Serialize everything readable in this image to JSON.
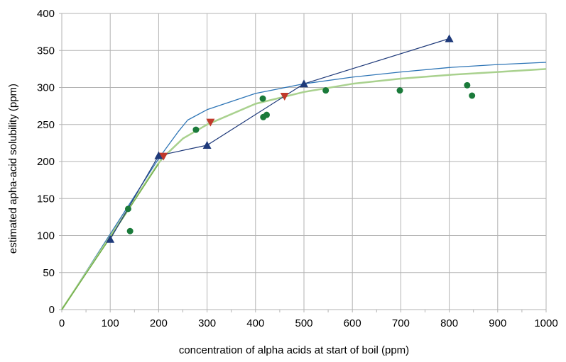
{
  "chart_data": {
    "type": "scatter",
    "title": "",
    "xlabel": "concentration of alpha acids at start of boil (ppm)",
    "ylabel": "estimated apha-acid solubility (ppm)",
    "xlim": [
      0,
      1000
    ],
    "ylim": [
      0,
      400
    ],
    "x_ticks": [
      0,
      100,
      200,
      300,
      400,
      500,
      600,
      700,
      800,
      900,
      1000
    ],
    "y_ticks": [
      0,
      50,
      100,
      150,
      200,
      250,
      300,
      350,
      400
    ],
    "grid": true,
    "legend": "none",
    "series": [
      {
        "kind": "line-marker",
        "marker": "triangle-up",
        "color": "#1f3a7a",
        "points": [
          [
            100,
            95
          ],
          [
            200,
            208
          ],
          [
            300,
            222
          ],
          [
            500,
            305
          ],
          [
            800,
            366
          ]
        ]
      },
      {
        "kind": "marker",
        "marker": "triangle-down",
        "color": "#c0392b",
        "points": [
          [
            210,
            207
          ],
          [
            307,
            253
          ],
          [
            460,
            288
          ]
        ]
      },
      {
        "kind": "marker",
        "marker": "circle",
        "color": "#1a7a3a",
        "points": [
          [
            137,
            136
          ],
          [
            141,
            106
          ],
          [
            277,
            243
          ],
          [
            415,
            285
          ],
          [
            416,
            260
          ],
          [
            423,
            263
          ],
          [
            545,
            296
          ],
          [
            698,
            296
          ],
          [
            837,
            303
          ],
          [
            847,
            289
          ]
        ]
      },
      {
        "kind": "curve",
        "color": "#2e75b6",
        "points": [
          [
            0,
            0
          ],
          [
            100,
            102
          ],
          [
            200,
            204
          ],
          [
            220,
            222
          ],
          [
            240,
            240
          ],
          [
            260,
            256
          ],
          [
            300,
            270
          ],
          [
            400,
            292
          ],
          [
            500,
            305
          ],
          [
            600,
            314
          ],
          [
            700,
            321
          ],
          [
            800,
            327
          ],
          [
            900,
            331
          ],
          [
            1000,
            334
          ]
        ]
      },
      {
        "kind": "curve",
        "color": "#a9d18e",
        "points": [
          [
            0,
            0
          ],
          [
            100,
            99
          ],
          [
            200,
            198
          ],
          [
            210,
            206
          ],
          [
            250,
            231
          ],
          [
            300,
            250
          ],
          [
            400,
            278
          ],
          [
            500,
            294
          ],
          [
            600,
            305
          ],
          [
            700,
            312
          ],
          [
            800,
            317
          ],
          [
            900,
            321
          ],
          [
            1000,
            325
          ]
        ]
      },
      {
        "kind": "curve",
        "color": "#70ad47",
        "points": [
          [
            0,
            0
          ],
          [
            100,
            97
          ],
          [
            137,
            134
          ],
          [
            200,
            197
          ]
        ]
      }
    ]
  }
}
